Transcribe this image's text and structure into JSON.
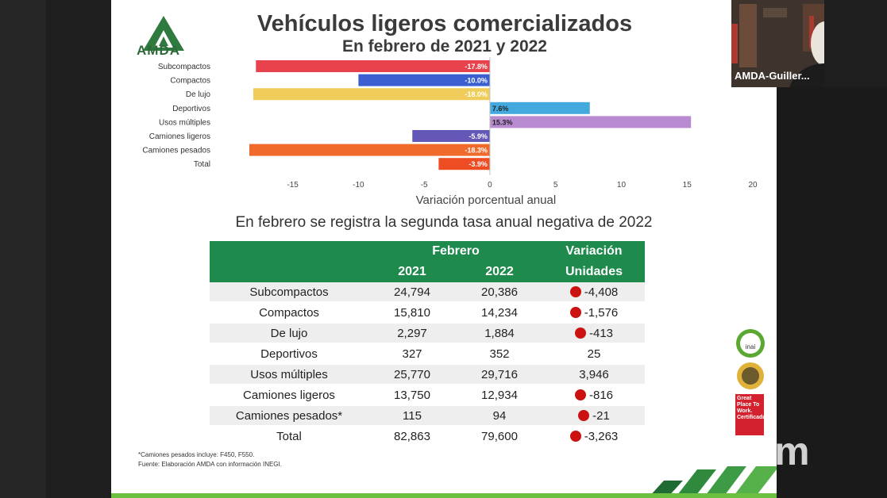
{
  "slide": {
    "logo_text": "AMDA",
    "title": "Vehículos ligeros comercializados",
    "subtitle": "En febrero de 2021 y 2022",
    "section_title": "En febrero se registra la segunda tasa anual negativa de 2022",
    "footnote1": "*Camiones pesados incluye: F450, F550.",
    "footnote2": "Fuente: Elaboración AMDA con información INEGI.",
    "badge_inai": "inai",
    "badge_gptw": "Great Place To Work. Certificada"
  },
  "chart_data": {
    "type": "bar",
    "orientation": "horizontal",
    "categories": [
      "Subcompactos",
      "Compactos",
      "De lujo",
      "Deportivos",
      "Usos múltiples",
      "Camiones ligeros",
      "Camiones pesados",
      "Total"
    ],
    "values": [
      -17.8,
      -10.0,
      -18.0,
      7.6,
      15.3,
      -5.9,
      -18.3,
      -3.9
    ],
    "labels": [
      "-17.8%",
      "-10.0%",
      "-18.0%",
      "7.6%",
      "15.3%",
      "-5.9%",
      "-18.3%",
      "-3.9%"
    ],
    "colors": [
      "#e8434d",
      "#3b5fd1",
      "#f0cd5a",
      "#43a9de",
      "#b88ad0",
      "#6357b8",
      "#f06a2c",
      "#ee4d23"
    ],
    "xlabel": "Variación porcentual anual",
    "xlim": [
      -18.3,
      20
    ],
    "xticks": [
      -15,
      -10,
      -5,
      0,
      5,
      10,
      15,
      20
    ]
  },
  "table": {
    "header_group": "Febrero",
    "header_variation": "Variación",
    "header_2021": "2021",
    "header_2022": "2022",
    "header_units": "Unidades",
    "rows": [
      {
        "name": "Subcompactos",
        "y2021": "24,794",
        "y2022": "20,386",
        "var": "-4,408",
        "neg": true
      },
      {
        "name": "Compactos",
        "y2021": "15,810",
        "y2022": "14,234",
        "var": "-1,576",
        "neg": true
      },
      {
        "name": "De lujo",
        "y2021": "2,297",
        "y2022": "1,884",
        "var": "-413",
        "neg": true
      },
      {
        "name": "Deportivos",
        "y2021": "327",
        "y2022": "352",
        "var": "25",
        "neg": false
      },
      {
        "name": "Usos múltiples",
        "y2021": "25,770",
        "y2022": "29,716",
        "var": "3,946",
        "neg": false
      },
      {
        "name": "Camiones ligeros",
        "y2021": "13,750",
        "y2022": "12,934",
        "var": "-816",
        "neg": true
      },
      {
        "name": "Camiones pesados*",
        "y2021": "115",
        "y2022": "94",
        "var": "-21",
        "neg": true
      },
      {
        "name": "Total",
        "y2021": "82,863",
        "y2022": "79,600",
        "var": "-3,263",
        "neg": true
      }
    ]
  },
  "video": {
    "participant_name": "AMDA-Guiller...",
    "watermark": "zoom"
  }
}
